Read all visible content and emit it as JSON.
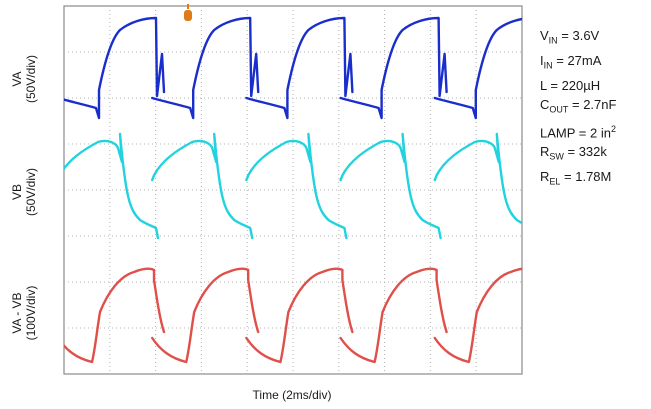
{
  "chart_data": {
    "type": "line",
    "xlabel": "Time (2ms/div)",
    "x_divisions": 10,
    "y_divisions": 8,
    "grid": true,
    "channels": [
      {
        "name": "VA",
        "label_line1": "VA",
        "label_line2": "(50V/div)",
        "color": "#1a2ecc"
      },
      {
        "name": "VB",
        "label_line1": "VB",
        "label_line2": "(50V/div)",
        "color": "#22d3df"
      },
      {
        "name": "VA - VB",
        "label_line1": "VA - VB",
        "label_line2": "(100V/div)",
        "color": "#e0504a"
      }
    ],
    "trigger_marker_color": "#e07b1a",
    "params": [
      {
        "key": "vin",
        "main": "V",
        "sub": "IN",
        "sup": "",
        "value": " = 3.6V"
      },
      {
        "key": "iin",
        "main": "I",
        "sub": "IN",
        "sup": "",
        "value": " = 27mA"
      },
      {
        "key": "l",
        "main": "L",
        "sub": "",
        "sup": "",
        "value": " = 220µH"
      },
      {
        "key": "cout",
        "main": "C",
        "sub": "OUT",
        "sup": "",
        "value": " = 2.7nF"
      },
      {
        "key": "lamp",
        "main": "LAMP",
        "sub": "",
        "sup": "2",
        "value": " = 2 in"
      },
      {
        "key": "rsw",
        "main": "R",
        "sub": "SW",
        "sup": "",
        "value": " = 332k"
      },
      {
        "key": "rel",
        "main": "R",
        "sub": "EL",
        "sup": "",
        "value": " = 1.78M"
      }
    ]
  }
}
